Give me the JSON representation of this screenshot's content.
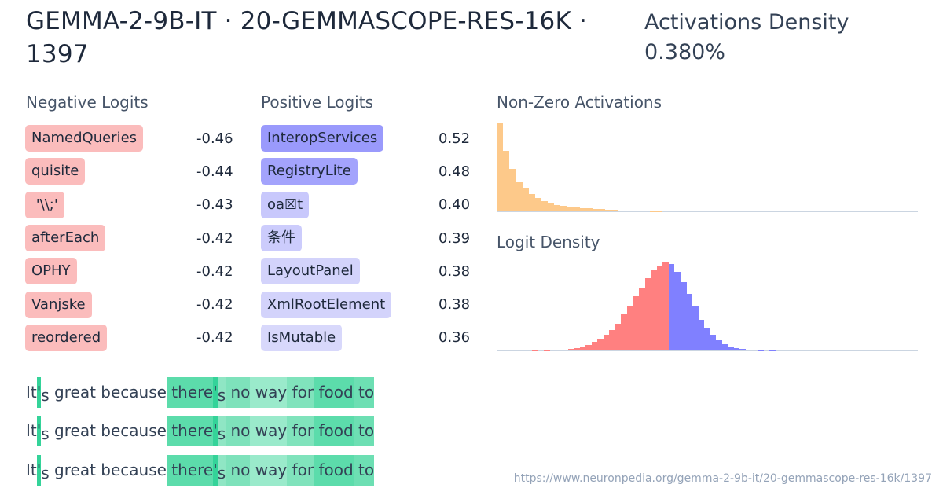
{
  "header": {
    "title": "GEMMA-2-9B-IT · 20-GEMMASCOPE-RES-16K · 1397",
    "density_label": "Activations Density",
    "density_value": "0.380%"
  },
  "negative_logits": {
    "label": "Negative Logits",
    "color": "#fbbcbc",
    "items": [
      {
        "token": "NamedQueries",
        "value": "-0.46"
      },
      {
        "token": "quisite",
        "value": "-0.44"
      },
      {
        "token": " '\\\\;'",
        "value": "-0.43"
      },
      {
        "token": "afterEach",
        "value": "-0.42"
      },
      {
        "token": "OPHY",
        "value": "-0.42"
      },
      {
        "token": "Vanjske",
        "value": "-0.42"
      },
      {
        "token": "reordered",
        "value": "-0.42"
      }
    ]
  },
  "positive_logits": {
    "label": "Positive Logits",
    "items": [
      {
        "token": "InteropServices",
        "value": "0.52",
        "color": "#9a9afc"
      },
      {
        "token": "RegistryLite",
        "value": "0.48",
        "color": "#a3a3fc"
      },
      {
        "token": "oa☒t",
        "value": "0.40",
        "color": "#c8c8fc"
      },
      {
        "token": "条件",
        "value": "0.39",
        "color": "#ccccfc"
      },
      {
        "token": "LayoutPanel",
        "value": "0.38",
        "color": "#d3d3fb"
      },
      {
        "token": "XmlRootElement",
        "value": "0.38",
        "color": "#d3d3fb"
      },
      {
        "token": "IsMutable",
        "value": "0.36",
        "color": "#d8d8fb"
      }
    ]
  },
  "chart_data": [
    {
      "type": "bar",
      "title": "Non-Zero Activations",
      "xlabel": "",
      "ylabel": "",
      "color": "#fdc98a",
      "grid": false,
      "values": [
        112,
        76,
        54,
        37,
        30,
        22,
        17,
        13,
        10,
        8,
        7,
        6,
        5,
        4,
        3.5,
        3,
        2.5,
        2,
        2,
        1.5,
        1.5,
        1,
        1,
        0.8,
        0.5,
        0.3
      ]
    },
    {
      "type": "bar",
      "title": "Logit Density",
      "xlabel": "",
      "ylabel": "",
      "grid": false,
      "negative_color": "#ff8080",
      "positive_color": "#8080ff",
      "negative_values": [
        0,
        0,
        0,
        0,
        0,
        0,
        0.3,
        0,
        0.3,
        0,
        0.5,
        0,
        1.5,
        2,
        3,
        4.5,
        6.5,
        9,
        12.5,
        16,
        21,
        28,
        35,
        42,
        49,
        56,
        62,
        66,
        69
      ],
      "positive_values": [
        67,
        61,
        53,
        44,
        34,
        24,
        17,
        12,
        8,
        5,
        3,
        2,
        1,
        0.5,
        0,
        0.3,
        0,
        0.3,
        0,
        0,
        0,
        0,
        0,
        0,
        0,
        0,
        0,
        0,
        0,
        0,
        0,
        0,
        0,
        0,
        0,
        0,
        0,
        0,
        0,
        0,
        0,
        0
      ]
    }
  ],
  "examples": [
    {
      "tokens": [
        {
          "text": "It",
          "bg": ""
        },
        {
          "text": "'",
          "bg": "#34d399"
        },
        {
          "text": "s",
          "bg": "",
          "sub": true
        },
        {
          "text": " great",
          "bg": ""
        },
        {
          "text": " because",
          "bg": ""
        },
        {
          "text": " there",
          "bg": "#5cdcab"
        },
        {
          "text": "'",
          "bg": "#34d399"
        },
        {
          "text": "s",
          "bg": "#8fe6c4",
          "sub": true
        },
        {
          "text": " no",
          "bg": "#7ee2bb"
        },
        {
          "text": " way",
          "bg": "#9aeacb"
        },
        {
          "text": " for",
          "bg": "#80e3bc"
        },
        {
          "text": " food",
          "bg": "#5cdcab"
        },
        {
          "text": " to",
          "bg": "#6ddfb3"
        }
      ]
    },
    {
      "tokens": [
        {
          "text": "It",
          "bg": ""
        },
        {
          "text": "'",
          "bg": "#34d399"
        },
        {
          "text": "s",
          "bg": "",
          "sub": true
        },
        {
          "text": " great",
          "bg": ""
        },
        {
          "text": " because",
          "bg": ""
        },
        {
          "text": " there",
          "bg": "#5cdcab"
        },
        {
          "text": "'",
          "bg": "#34d399"
        },
        {
          "text": "s",
          "bg": "#8fe6c4",
          "sub": true
        },
        {
          "text": " no",
          "bg": "#7ee2bb"
        },
        {
          "text": " way",
          "bg": "#9aeacb"
        },
        {
          "text": " for",
          "bg": "#80e3bc"
        },
        {
          "text": " food",
          "bg": "#5cdcab"
        },
        {
          "text": " to",
          "bg": "#6ddfb3"
        }
      ]
    },
    {
      "tokens": [
        {
          "text": "It",
          "bg": ""
        },
        {
          "text": "'",
          "bg": "#34d399"
        },
        {
          "text": "s",
          "bg": "",
          "sub": true
        },
        {
          "text": " great",
          "bg": ""
        },
        {
          "text": " because",
          "bg": ""
        },
        {
          "text": " there",
          "bg": "#5cdcab"
        },
        {
          "text": "'",
          "bg": "#34d399"
        },
        {
          "text": "s",
          "bg": "#8fe6c4",
          "sub": true
        },
        {
          "text": " no",
          "bg": "#7ee2bb"
        },
        {
          "text": " way",
          "bg": "#9aeacb"
        },
        {
          "text": " for",
          "bg": "#80e3bc"
        },
        {
          "text": " food",
          "bg": "#5cdcab"
        },
        {
          "text": " to",
          "bg": "#6ddfb3"
        }
      ]
    }
  ],
  "footer": {
    "url": "https://www.neuronpedia.org/gemma-2-9b-it/20-gemmascope-res-16k/1397"
  }
}
